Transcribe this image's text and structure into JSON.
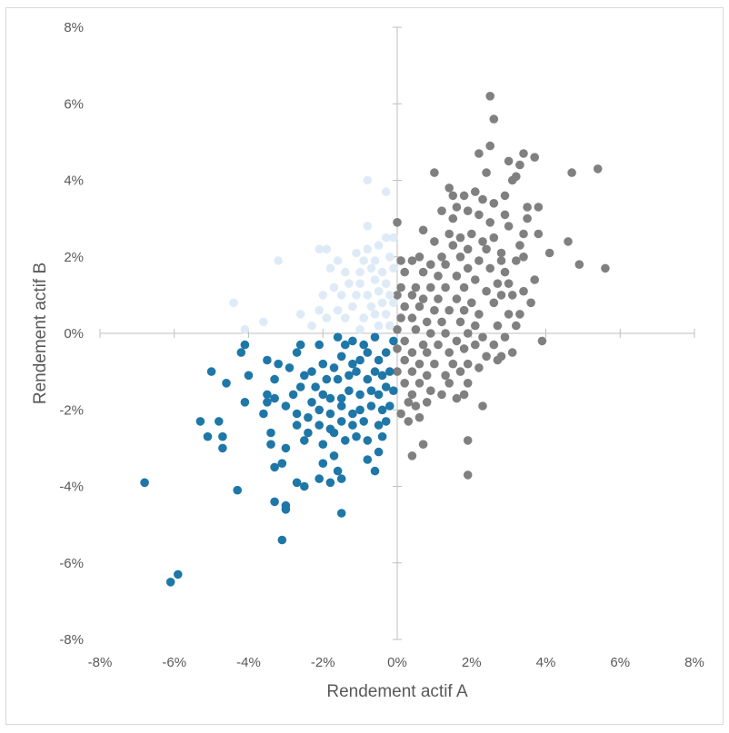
{
  "chart_data": {
    "type": "scatter",
    "title": "",
    "xlabel": "Rendement actif A",
    "ylabel": "Rendement actif B",
    "xlim": [
      -8,
      8
    ],
    "ylim": [
      -8,
      8
    ],
    "x_ticks": [
      "-8%",
      "-6%",
      "-4%",
      "-2%",
      "0%",
      "2%",
      "4%",
      "6%",
      "8%"
    ],
    "y_ticks": [
      "8%",
      "6%",
      "4%",
      "2%",
      "0%",
      "-2%",
      "-4%",
      "-6%",
      "-8%"
    ],
    "grid": false,
    "legend": "none",
    "series": [
      {
        "color": "#808080",
        "points": [
          [
            2.5,
            6.2
          ],
          [
            2.6,
            5.6
          ],
          [
            2.5,
            4.9
          ],
          [
            2.2,
            4.7
          ],
          [
            3.4,
            4.7
          ],
          [
            3.7,
            4.6
          ],
          [
            3.0,
            4.5
          ],
          [
            3.3,
            4.4
          ],
          [
            4.7,
            4.2
          ],
          [
            5.4,
            4.3
          ],
          [
            1.0,
            4.2
          ],
          [
            2.4,
            4.2
          ],
          [
            3.2,
            4.1
          ],
          [
            3.1,
            4.0
          ],
          [
            1.4,
            3.8
          ],
          [
            2.1,
            3.7
          ],
          [
            1.8,
            3.6
          ],
          [
            2.3,
            3.5
          ],
          [
            1.5,
            3.6
          ],
          [
            2.9,
            3.6
          ],
          [
            3.5,
            3.3
          ],
          [
            3.8,
            3.3
          ],
          [
            1.2,
            3.2
          ],
          [
            2.6,
            3.4
          ],
          [
            2.9,
            3.1
          ],
          [
            1.6,
            3.3
          ],
          [
            1.9,
            3.2
          ],
          [
            2.2,
            3.1
          ],
          [
            3.5,
            3.0
          ],
          [
            1.5,
            3.0
          ],
          [
            2.5,
            2.9
          ],
          [
            3.0,
            2.8
          ],
          [
            0.0,
            2.9
          ],
          [
            0.7,
            2.7
          ],
          [
            1.4,
            2.6
          ],
          [
            2.0,
            2.6
          ],
          [
            2.6,
            2.5
          ],
          [
            3.4,
            2.6
          ],
          [
            3.8,
            2.6
          ],
          [
            4.6,
            2.4
          ],
          [
            1.0,
            2.4
          ],
          [
            1.7,
            2.5
          ],
          [
            2.3,
            2.4
          ],
          [
            3.3,
            2.3
          ],
          [
            1.5,
            2.3
          ],
          [
            1.9,
            2.2
          ],
          [
            2.4,
            2.2
          ],
          [
            2.8,
            2.1
          ],
          [
            4.1,
            2.1
          ],
          [
            0.6,
            2.0
          ],
          [
            1.2,
            2.0
          ],
          [
            1.7,
            2.0
          ],
          [
            2.2,
            1.9
          ],
          [
            2.8,
            1.9
          ],
          [
            3.2,
            1.9
          ],
          [
            3.4,
            2.0
          ],
          [
            4.9,
            1.8
          ],
          [
            5.6,
            1.7
          ],
          [
            0.1,
            1.9
          ],
          [
            0.4,
            1.9
          ],
          [
            0.9,
            1.8
          ],
          [
            1.3,
            1.8
          ],
          [
            1.9,
            1.7
          ],
          [
            2.5,
            1.7
          ],
          [
            2.9,
            1.6
          ],
          [
            0.2,
            1.6
          ],
          [
            0.7,
            1.6
          ],
          [
            1.1,
            1.5
          ],
          [
            1.6,
            1.5
          ],
          [
            2.1,
            1.4
          ],
          [
            2.7,
            1.3
          ],
          [
            3.0,
            1.3
          ],
          [
            3.7,
            1.4
          ],
          [
            0.1,
            1.2
          ],
          [
            0.5,
            1.2
          ],
          [
            0.9,
            1.2
          ],
          [
            1.3,
            1.2
          ],
          [
            1.8,
            1.2
          ],
          [
            2.4,
            1.1
          ],
          [
            2.8,
            1.0
          ],
          [
            3.1,
            1.0
          ],
          [
            3.4,
            1.1
          ],
          [
            0.0,
            1.0
          ],
          [
            0.4,
            1.0
          ],
          [
            0.7,
            0.9
          ],
          [
            1.1,
            0.9
          ],
          [
            1.6,
            0.9
          ],
          [
            2.0,
            0.8
          ],
          [
            2.6,
            0.8
          ],
          [
            3.6,
            0.8
          ],
          [
            0.2,
            0.7
          ],
          [
            0.6,
            0.7
          ],
          [
            1.0,
            0.6
          ],
          [
            1.4,
            0.6
          ],
          [
            1.8,
            0.6
          ],
          [
            2.2,
            0.5
          ],
          [
            3.0,
            0.5
          ],
          [
            3.3,
            0.5
          ],
          [
            0.1,
            0.4
          ],
          [
            0.4,
            0.4
          ],
          [
            0.8,
            0.3
          ],
          [
            1.2,
            0.3
          ],
          [
            1.7,
            0.3
          ],
          [
            2.1,
            0.2
          ],
          [
            2.7,
            0.2
          ],
          [
            3.2,
            0.2
          ],
          [
            0.0,
            0.1
          ],
          [
            0.5,
            0.1
          ],
          [
            0.9,
            0.0
          ],
          [
            1.3,
            0.0
          ],
          [
            1.9,
            0.0
          ],
          [
            2.3,
            -0.1
          ],
          [
            2.9,
            -0.1
          ],
          [
            3.9,
            -0.2
          ],
          [
            0.2,
            -0.2
          ],
          [
            0.7,
            -0.3
          ],
          [
            1.1,
            -0.3
          ],
          [
            1.6,
            -0.2
          ],
          [
            2.1,
            -0.3
          ],
          [
            2.6,
            -0.3
          ],
          [
            0.0,
            -0.4
          ],
          [
            0.4,
            -0.5
          ],
          [
            0.8,
            -0.5
          ],
          [
            1.4,
            -0.5
          ],
          [
            1.8,
            -0.4
          ],
          [
            2.4,
            -0.6
          ],
          [
            2.8,
            -0.6
          ],
          [
            3.1,
            -0.5
          ],
          [
            0.2,
            -0.7
          ],
          [
            0.6,
            -0.8
          ],
          [
            1.0,
            -0.8
          ],
          [
            1.5,
            -0.8
          ],
          [
            1.9,
            -0.8
          ],
          [
            2.7,
            -0.7
          ],
          [
            0.0,
            -1.0
          ],
          [
            0.4,
            -1.0
          ],
          [
            0.8,
            -1.1
          ],
          [
            1.3,
            -1.1
          ],
          [
            1.7,
            -1.0
          ],
          [
            2.2,
            -0.9
          ],
          [
            0.2,
            -1.3
          ],
          [
            0.6,
            -1.3
          ],
          [
            1.4,
            -1.3
          ],
          [
            1.9,
            -1.3
          ],
          [
            0.4,
            -1.6
          ],
          [
            0.9,
            -1.5
          ],
          [
            1.2,
            -1.6
          ],
          [
            1.8,
            -1.6
          ],
          [
            0.3,
            -1.8
          ],
          [
            0.5,
            -1.9
          ],
          [
            0.8,
            -1.8
          ],
          [
            1.6,
            -1.7
          ],
          [
            2.3,
            -1.9
          ],
          [
            0.1,
            -2.1
          ],
          [
            0.6,
            -2.2
          ],
          [
            0.3,
            -2.3
          ],
          [
            0.7,
            -2.9
          ],
          [
            0.4,
            -3.2
          ],
          [
            1.9,
            -2.8
          ],
          [
            1.9,
            -3.7
          ]
        ]
      },
      {
        "color": "#1f77a8",
        "points": [
          [
            -0.6,
            -0.1
          ],
          [
            -0.9,
            -0.3
          ],
          [
            -1.2,
            -0.2
          ],
          [
            -1.4,
            -0.3
          ],
          [
            -1.6,
            -0.1
          ],
          [
            -2.1,
            -0.3
          ],
          [
            -2.6,
            -0.3
          ],
          [
            -2.7,
            -0.5
          ],
          [
            -0.1,
            -0.2
          ],
          [
            -0.3,
            -0.5
          ],
          [
            -0.5,
            -0.7
          ],
          [
            -0.8,
            -0.5
          ],
          [
            -1.0,
            -0.7
          ],
          [
            -1.2,
            -0.8
          ],
          [
            -1.5,
            -0.6
          ],
          [
            -1.7,
            -0.9
          ],
          [
            -2.0,
            -0.8
          ],
          [
            -2.3,
            -1.0
          ],
          [
            -2.5,
            -1.1
          ],
          [
            -2.9,
            -0.9
          ],
          [
            -3.2,
            -0.8
          ],
          [
            -3.5,
            -0.7
          ],
          [
            -4.1,
            -0.3
          ],
          [
            -4.2,
            -0.5
          ],
          [
            -4.6,
            -1.3
          ],
          [
            -5.0,
            -1.0
          ],
          [
            -0.2,
            -1.0
          ],
          [
            -0.4,
            -1.1
          ],
          [
            -0.6,
            -1.0
          ],
          [
            -0.8,
            -1.2
          ],
          [
            -1.1,
            -1.0
          ],
          [
            -1.3,
            -1.1
          ],
          [
            -1.6,
            -1.2
          ],
          [
            -1.9,
            -1.2
          ],
          [
            -2.2,
            -1.4
          ],
          [
            -2.6,
            -1.4
          ],
          [
            -3.3,
            -1.2
          ],
          [
            -3.5,
            -1.6
          ],
          [
            -4.0,
            -1.1
          ],
          [
            -4.1,
            -1.8
          ],
          [
            -0.1,
            -1.5
          ],
          [
            -0.3,
            -1.4
          ],
          [
            -0.5,
            -1.6
          ],
          [
            -0.7,
            -1.5
          ],
          [
            -1.0,
            -1.6
          ],
          [
            -1.3,
            -1.5
          ],
          [
            -1.5,
            -1.7
          ],
          [
            -1.8,
            -1.7
          ],
          [
            -2.0,
            -1.6
          ],
          [
            -2.3,
            -1.8
          ],
          [
            -2.8,
            -1.6
          ],
          [
            -3.3,
            -1.7
          ],
          [
            -3.5,
            -1.8
          ],
          [
            -0.2,
            -1.9
          ],
          [
            -0.4,
            -2.0
          ],
          [
            -0.7,
            -1.9
          ],
          [
            -1.0,
            -2.0
          ],
          [
            -1.2,
            -2.1
          ],
          [
            -1.5,
            -1.9
          ],
          [
            -1.8,
            -2.1
          ],
          [
            -2.1,
            -2.0
          ],
          [
            -2.4,
            -2.2
          ],
          [
            -2.7,
            -2.1
          ],
          [
            -3.0,
            -1.9
          ],
          [
            -3.6,
            -2.1
          ],
          [
            -0.3,
            -2.3
          ],
          [
            -0.5,
            -2.4
          ],
          [
            -0.9,
            -2.3
          ],
          [
            -1.2,
            -2.4
          ],
          [
            -1.5,
            -2.3
          ],
          [
            -1.8,
            -2.5
          ],
          [
            -2.1,
            -2.4
          ],
          [
            -2.4,
            -2.6
          ],
          [
            -2.7,
            -2.4
          ],
          [
            -3.4,
            -2.6
          ],
          [
            -0.4,
            -2.7
          ],
          [
            -0.8,
            -2.8
          ],
          [
            -1.1,
            -2.7
          ],
          [
            -1.4,
            -2.8
          ],
          [
            -1.7,
            -2.6
          ],
          [
            -2.0,
            -2.9
          ],
          [
            -2.5,
            -2.8
          ],
          [
            -3.0,
            -3.0
          ],
          [
            -5.3,
            -2.3
          ],
          [
            -4.8,
            -2.3
          ],
          [
            -5.1,
            -2.7
          ],
          [
            -4.7,
            -2.7
          ],
          [
            -4.7,
            -3.0
          ],
          [
            -3.4,
            -2.9
          ],
          [
            -0.5,
            -3.1
          ],
          [
            -0.8,
            -3.3
          ],
          [
            -1.7,
            -3.2
          ],
          [
            -2.0,
            -3.4
          ],
          [
            -1.5,
            -3.8
          ],
          [
            -1.6,
            -3.6
          ],
          [
            -1.8,
            -3.9
          ],
          [
            -2.1,
            -3.8
          ],
          [
            -2.7,
            -3.9
          ],
          [
            -2.5,
            -4.0
          ],
          [
            -3.3,
            -3.5
          ],
          [
            -3.1,
            -3.4
          ],
          [
            -0.6,
            -3.6
          ],
          [
            -4.3,
            -4.1
          ],
          [
            -3.3,
            -4.4
          ],
          [
            -3.0,
            -4.5
          ],
          [
            -3.0,
            -4.6
          ],
          [
            -1.5,
            -4.7
          ],
          [
            -3.1,
            -5.4
          ],
          [
            -6.8,
            -3.9
          ],
          [
            -5.9,
            -6.3
          ],
          [
            -6.1,
            -6.5
          ]
        ]
      },
      {
        "color": "#deebf7",
        "points": [
          [
            -0.8,
            4.0
          ],
          [
            -0.3,
            3.7
          ],
          [
            -0.8,
            2.8
          ],
          [
            -0.1,
            2.5
          ],
          [
            -0.3,
            2.5
          ],
          [
            -0.5,
            2.3
          ],
          [
            -0.8,
            2.2
          ],
          [
            -1.1,
            2.1
          ],
          [
            -1.9,
            2.2
          ],
          [
            -2.1,
            2.2
          ],
          [
            -0.2,
            2.0
          ],
          [
            -0.6,
            1.9
          ],
          [
            -0.9,
            1.9
          ],
          [
            -1.6,
            1.9
          ],
          [
            -3.2,
            1.9
          ],
          [
            -0.1,
            1.7
          ],
          [
            -0.4,
            1.6
          ],
          [
            -0.7,
            1.7
          ],
          [
            -1.0,
            1.6
          ],
          [
            -1.4,
            1.6
          ],
          [
            -1.8,
            1.7
          ],
          [
            -0.3,
            1.3
          ],
          [
            -0.6,
            1.4
          ],
          [
            -1.0,
            1.3
          ],
          [
            -1.3,
            1.3
          ],
          [
            -1.7,
            1.2
          ],
          [
            -0.2,
            1.0
          ],
          [
            -0.5,
            1.1
          ],
          [
            -0.8,
            1.0
          ],
          [
            -1.1,
            1.0
          ],
          [
            -1.5,
            1.0
          ],
          [
            -2.0,
            1.0
          ],
          [
            -0.1,
            0.8
          ],
          [
            -0.4,
            0.8
          ],
          [
            -0.7,
            0.7
          ],
          [
            -1.2,
            0.7
          ],
          [
            -1.6,
            0.6
          ],
          [
            -2.1,
            0.6
          ],
          [
            -4.4,
            0.8
          ],
          [
            -0.3,
            0.5
          ],
          [
            -0.6,
            0.5
          ],
          [
            -0.9,
            0.4
          ],
          [
            -1.4,
            0.4
          ],
          [
            -1.9,
            0.4
          ],
          [
            -2.6,
            0.5
          ],
          [
            -3.6,
            0.3
          ],
          [
            -0.2,
            0.2
          ],
          [
            -0.5,
            0.2
          ],
          [
            -1.0,
            0.1
          ],
          [
            -2.3,
            0.2
          ],
          [
            -4.1,
            0.1
          ]
        ]
      }
    ]
  }
}
